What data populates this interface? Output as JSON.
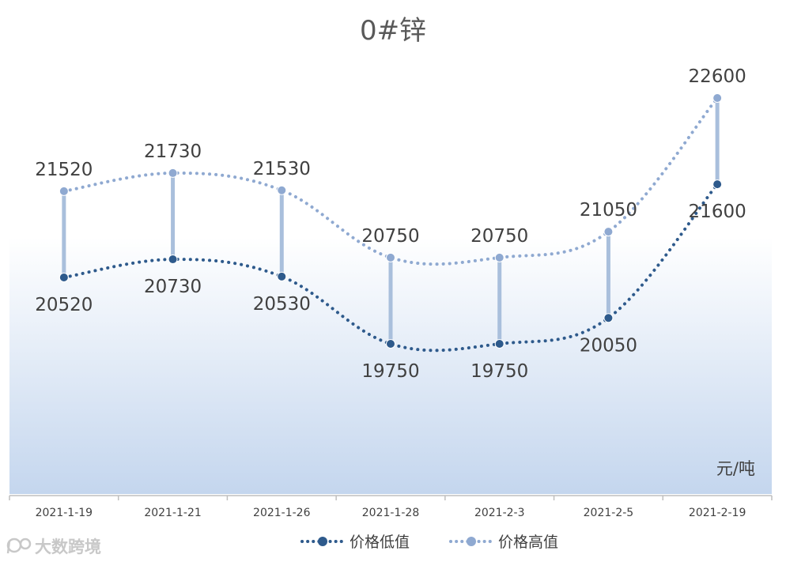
{
  "chart_data": {
    "type": "line",
    "title": "0#锌",
    "unit_label": "元/吨",
    "categories": [
      "2021-1-19",
      "2021-1-21",
      "2021-1-26",
      "2021-1-28",
      "2021-2-3",
      "2021-2-5",
      "2021-2-19"
    ],
    "series": [
      {
        "name": "价格低值",
        "values": [
          20520,
          20730,
          20530,
          19750,
          19750,
          20050,
          21600
        ],
        "color": "#2e5a8c",
        "marker": "circle",
        "line_style": "dotted",
        "label_position": "below"
      },
      {
        "name": "价格高值",
        "values": [
          21520,
          21730,
          21530,
          20750,
          20750,
          21050,
          22600
        ],
        "color": "#8fa9d1",
        "marker": "circle",
        "line_style": "dotted",
        "label_position": "above"
      }
    ],
    "connector_color": "#a9bfdc",
    "background_gradient": [
      "#ffffff",
      "#c4d6ee"
    ],
    "smooth": true,
    "grid": false,
    "y_axis_visible": false,
    "legend_position": "bottom"
  },
  "watermark": {
    "text": "大数跨境",
    "icon": "camera-logo-icon"
  }
}
